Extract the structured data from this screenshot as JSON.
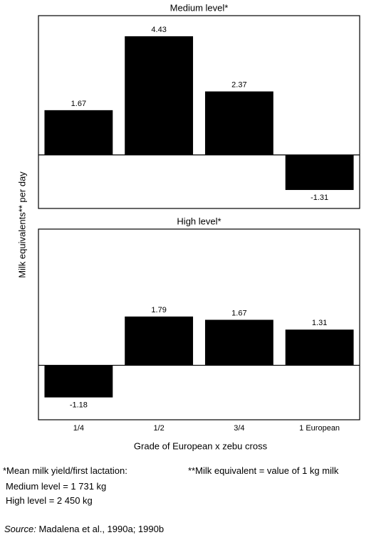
{
  "chart_data": [
    {
      "type": "bar",
      "title": "Medium level*",
      "categories": [
        "1/4",
        "1/2",
        "3/4",
        "1 European"
      ],
      "values": [
        1.67,
        4.43,
        2.37,
        -1.31
      ],
      "color": "#000000",
      "ylim": [
        -2,
        5.2
      ]
    },
    {
      "type": "bar",
      "title": "High level*",
      "categories": [
        "1/4",
        "1/2",
        "3/4",
        "1 European"
      ],
      "values": [
        -1.18,
        1.79,
        1.67,
        1.31
      ],
      "color": "#000000",
      "ylim": [
        -2,
        5
      ],
      "xlabel": "Grade of European x zebu cross"
    }
  ],
  "ylabel": "Milk equivalents** per day",
  "footnotes": {
    "left": [
      "*Mean milk yield/first lactation:",
      "Medium level = 1 731 kg",
      "High level = 2 450 kg"
    ],
    "right": "**Milk equivalent = value of 1 kg milk"
  },
  "source": {
    "label": "Source:",
    "text": "Madalena et al., 1990a; 1990b"
  }
}
